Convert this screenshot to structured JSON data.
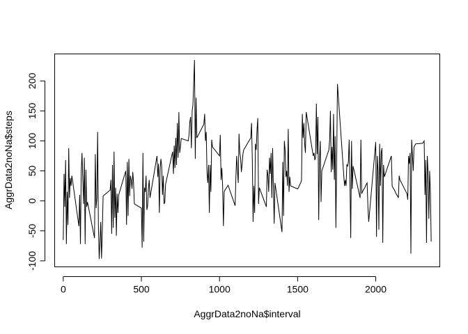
{
  "chart_data": {
    "type": "line",
    "title": "",
    "xlabel": "AggrData2noNa$interval",
    "ylabel": "AggrData2noNa$steps",
    "xlim": [
      -55,
      2410
    ],
    "ylim": [
      -110,
      245
    ],
    "xticks": [
      0,
      500,
      1000,
      1500,
      2000
    ],
    "yticks": [
      -100,
      -50,
      0,
      50,
      100,
      150,
      200
    ],
    "grid": false,
    "legend": "none",
    "series": [
      {
        "color": "#000000",
        "x": [
          0,
          5,
          10,
          15,
          20,
          25,
          30,
          35,
          40,
          45,
          50,
          55,
          100,
          105,
          110,
          115,
          120,
          125,
          130,
          135,
          140,
          145,
          150,
          155,
          200,
          205,
          210,
          215,
          220,
          225,
          230,
          235,
          240,
          245,
          250,
          255,
          300,
          305,
          310,
          315,
          320,
          325,
          330,
          335,
          340,
          345,
          350,
          355,
          400,
          405,
          410,
          415,
          420,
          425,
          430,
          435,
          440,
          445,
          450,
          455,
          500,
          505,
          510,
          515,
          520,
          525,
          530,
          535,
          540,
          545,
          550,
          555,
          600,
          605,
          610,
          615,
          620,
          625,
          630,
          635,
          640,
          645,
          650,
          655,
          700,
          705,
          710,
          715,
          720,
          725,
          730,
          735,
          740,
          745,
          750,
          755,
          800,
          805,
          810,
          815,
          820,
          825,
          830,
          835,
          840,
          845,
          850,
          855,
          900,
          905,
          910,
          915,
          920,
          925,
          930,
          935,
          940,
          945,
          950,
          955,
          1000,
          1005,
          1010,
          1015,
          1020,
          1025,
          1030,
          1035,
          1040,
          1045,
          1050,
          1055,
          1100,
          1105,
          1110,
          1115,
          1120,
          1125,
          1130,
          1135,
          1140,
          1145,
          1150,
          1155,
          1200,
          1205,
          1210,
          1215,
          1220,
          1225,
          1230,
          1235,
          1240,
          1245,
          1250,
          1255,
          1300,
          1305,
          1310,
          1315,
          1320,
          1325,
          1330,
          1335,
          1340,
          1345,
          1350,
          1355,
          1400,
          1405,
          1410,
          1415,
          1420,
          1425,
          1430,
          1435,
          1440,
          1445,
          1450,
          1455,
          1500,
          1505,
          1510,
          1515,
          1520,
          1525,
          1530,
          1535,
          1540,
          1545,
          1550,
          1555,
          1600,
          1605,
          1610,
          1615,
          1620,
          1625,
          1630,
          1635,
          1640,
          1645,
          1650,
          1655,
          1700,
          1705,
          1710,
          1715,
          1720,
          1725,
          1730,
          1735,
          1740,
          1745,
          1750,
          1755,
          1800,
          1805,
          1810,
          1815,
          1820,
          1825,
          1830,
          1835,
          1840,
          1845,
          1850,
          1855,
          1900,
          1905,
          1910,
          1915,
          1920,
          1925,
          1930,
          1935,
          1940,
          1945,
          1950,
          1955,
          2000,
          2005,
          2010,
          2015,
          2020,
          2025,
          2030,
          2035,
          2040,
          2045,
          2050,
          2055,
          2100,
          2105,
          2110,
          2115,
          2120,
          2125,
          2130,
          2135,
          2140,
          2145,
          2150,
          2155,
          2200,
          2205,
          2210,
          2215,
          2220,
          2225,
          2230,
          2235,
          2240,
          2245,
          2250,
          2255,
          2300,
          2305,
          2310,
          2315,
          2320,
          2325,
          2330,
          2335,
          2340,
          2345,
          2350,
          2355
        ],
        "y": [
          -65,
          45,
          -10,
          68,
          -72,
          15,
          -40,
          88,
          5,
          38,
          25,
          42,
          -42,
          10,
          -72,
          48,
          80,
          35,
          -5,
          72,
          -72,
          52,
          -10,
          -2,
          -62,
          78,
          -12,
          5,
          115,
          -42,
          -97,
          -68,
          -35,
          -96,
          -50,
          8,
          18,
          35,
          -55,
          60,
          -45,
          82,
          -28,
          22,
          -58,
          12,
          -20,
          10,
          50,
          -40,
          65,
          -25,
          70,
          8,
          42,
          35,
          20,
          48,
          30,
          -5,
          -12,
          -78,
          80,
          -68,
          22,
          15,
          42,
          -15,
          -8,
          20,
          35,
          5,
          75,
          40,
          62,
          -20,
          52,
          70,
          58,
          10,
          42,
          -5,
          -2,
          28,
          82,
          45,
          92,
          55,
          105,
          60,
          130,
          72,
          148,
          80,
          90,
          104,
          100,
          110,
          132,
          140,
          88,
          150,
          160,
          198,
          235,
          70,
          172,
          105,
          128,
          145,
          100,
          115,
          48,
          30,
          60,
          -20,
          60,
          15,
          102,
          90,
          75,
          110,
          35,
          55,
          25,
          -42,
          15,
          18,
          20,
          22,
          24,
          26,
          -8,
          40,
          75,
          50,
          30,
          112,
          80,
          72,
          48,
          62,
          78,
          85,
          105,
          130,
          70,
          -35,
          25,
          -20,
          95,
          85,
          118,
          138,
          -5,
          22,
          -10,
          52,
          42,
          15,
          72,
          45,
          80,
          5,
          88,
          20,
          -38,
          30,
          -52,
          65,
          -25,
          100,
          85,
          40,
          50,
          25,
          120,
          15,
          40,
          25,
          20,
          22,
          25,
          28,
          30,
          35,
          145,
          105,
          130,
          95,
          80,
          148,
          75,
          80,
          68,
          72,
          162,
          78,
          140,
          -32,
          68,
          100,
          -2,
          50,
          85,
          102,
          150,
          48,
          90,
          52,
          145,
          35,
          108,
          -45,
          68,
          195,
          25,
          35,
          25,
          60,
          58,
          65,
          102,
          32,
          -62,
          100,
          20,
          58,
          5,
          102,
          12,
          15,
          18,
          20,
          22,
          25,
          28,
          30,
          -10,
          -35,
          98,
          -60,
          75,
          50,
          -48,
          95,
          25,
          80,
          88,
          -70,
          60,
          40,
          75,
          25,
          22,
          20,
          18,
          15,
          12,
          10,
          8,
          5,
          42,
          35,
          12,
          2,
          75,
          62,
          80,
          -88,
          102,
          75,
          50,
          90,
          92,
          95,
          96,
          98,
          100,
          10,
          68,
          -70,
          75,
          48,
          -30,
          50,
          15,
          -68
        ]
      }
    ]
  }
}
